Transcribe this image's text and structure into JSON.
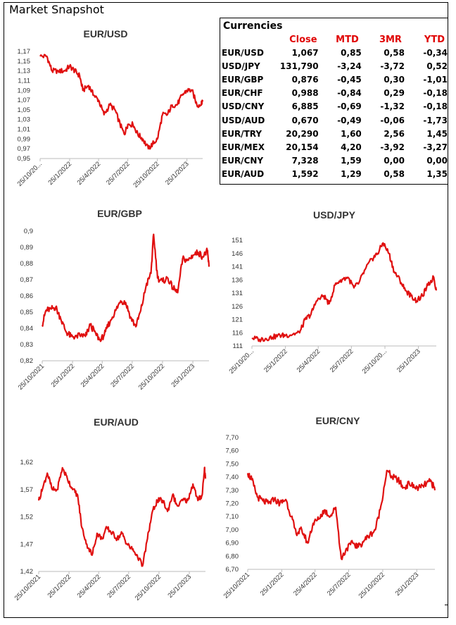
{
  "page_title": "Market Snapshot",
  "table": {
    "title": "Currencies",
    "headers": [
      "",
      "Close",
      "MTD",
      "3MR",
      "YTD"
    ],
    "rows": [
      [
        "EUR/USD",
        "1,067",
        "0,85",
        "0,58",
        "-0,34"
      ],
      [
        "USD/JPY",
        "131,790",
        "-3,24",
        "-3,72",
        "0,52"
      ],
      [
        "EUR/GBP",
        "0,876",
        "-0,45",
        "0,30",
        "-1,01"
      ],
      [
        "EUR/CHF",
        "0,988",
        "-0,84",
        "0,29",
        "-0,18"
      ],
      [
        "USD/CNY",
        "6,885",
        "-0,69",
        "-1,32",
        "-0,18"
      ],
      [
        "USD/AUD",
        "0,670",
        "-0,49",
        "-0,06",
        "-1,73"
      ],
      [
        "EUR/TRY",
        "20,290",
        "1,60",
        "2,56",
        "1,45"
      ],
      [
        "EUR/MEX",
        "20,154",
        "4,20",
        "-3,92",
        "-3,27"
      ],
      [
        "EUR/CNY",
        "7,328",
        "1,59",
        "0,00",
        "0,00"
      ],
      [
        "EUR/AUD",
        "1,592",
        "1,29",
        "0,58",
        "1,35"
      ]
    ],
    "header_color": "#e00000"
  },
  "line_color": "#e01010",
  "chart_data": [
    {
      "id": "eurusd",
      "type": "line",
      "title": "EUR/USD",
      "x": [
        "2021-10-25",
        "2021-11-15",
        "2021-12-01",
        "2021-12-20",
        "2022-01-10",
        "2022-01-25",
        "2022-02-10",
        "2022-02-25",
        "2022-03-07",
        "2022-03-25",
        "2022-04-10",
        "2022-04-25",
        "2022-05-12",
        "2022-05-30",
        "2022-06-15",
        "2022-07-01",
        "2022-07-14",
        "2022-07-25",
        "2022-08-10",
        "2022-08-25",
        "2022-09-10",
        "2022-09-27",
        "2022-10-10",
        "2022-10-25",
        "2022-11-10",
        "2022-11-25",
        "2022-12-10",
        "2022-12-25",
        "2023-01-10",
        "2023-01-25",
        "2023-02-10",
        "2023-02-25",
        "2023-03-10",
        "2023-03-15"
      ],
      "y": [
        1.16,
        1.16,
        1.13,
        1.13,
        1.13,
        1.14,
        1.13,
        1.12,
        1.09,
        1.1,
        1.08,
        1.07,
        1.04,
        1.06,
        1.05,
        1.02,
        1.0,
        1.02,
        1.02,
        1.0,
        0.99,
        0.97,
        0.98,
        0.99,
        1.04,
        1.04,
        1.06,
        1.06,
        1.08,
        1.09,
        1.09,
        1.06,
        1.06,
        1.07
      ],
      "yticks": [
        "1,17",
        "1,15",
        "1,13",
        "1,11",
        "1,09",
        "1,07",
        "1,05",
        "1,03",
        "1,01",
        "0,99",
        "0,97",
        "0,95"
      ],
      "ylim": [
        0.95,
        1.17
      ],
      "xticks": [
        "25/10/20...",
        "25/1/2022",
        "25/4/2022",
        "25/7/2022",
        "25/10/2022",
        "25/1/2023"
      ]
    },
    {
      "id": "eurgbp",
      "type": "line",
      "title": "EUR/GBP",
      "x": [
        "2021-10-25",
        "2021-11-05",
        "2021-11-20",
        "2021-12-05",
        "2021-12-20",
        "2022-01-05",
        "2022-01-20",
        "2022-02-05",
        "2022-02-20",
        "2022-03-05",
        "2022-03-20",
        "2022-04-05",
        "2022-04-20",
        "2022-05-05",
        "2022-05-20",
        "2022-06-05",
        "2022-06-20",
        "2022-07-05",
        "2022-07-20",
        "2022-08-05",
        "2022-08-20",
        "2022-09-05",
        "2022-09-20",
        "2022-09-28",
        "2022-10-10",
        "2022-10-25",
        "2022-11-10",
        "2022-11-25",
        "2022-12-10",
        "2022-12-25",
        "2023-01-10",
        "2023-01-25",
        "2023-02-10",
        "2023-02-25",
        "2023-03-10",
        "2023-03-15"
      ],
      "y": [
        0.842,
        0.851,
        0.852,
        0.853,
        0.846,
        0.838,
        0.835,
        0.835,
        0.836,
        0.835,
        0.842,
        0.837,
        0.832,
        0.838,
        0.845,
        0.851,
        0.857,
        0.856,
        0.847,
        0.841,
        0.851,
        0.866,
        0.874,
        0.898,
        0.871,
        0.869,
        0.871,
        0.865,
        0.862,
        0.883,
        0.882,
        0.885,
        0.887,
        0.884,
        0.888,
        0.878
      ],
      "yticks": [
        "0,9",
        "0,89",
        "0,88",
        "0,87",
        "0,86",
        "0,85",
        "0,84",
        "0,83",
        "0,82"
      ],
      "ylim": [
        0.82,
        0.9
      ],
      "xticks": [
        "25/10/2021",
        "25/1/2022",
        "25/4/2022",
        "25/7/2022",
        "25/10/2022",
        "25/1/2023"
      ]
    },
    {
      "id": "usdjpy",
      "type": "line",
      "title": "USD/JPY",
      "x": [
        "2021-10-25",
        "2021-11-15",
        "2021-12-01",
        "2021-12-20",
        "2022-01-10",
        "2022-01-25",
        "2022-02-15",
        "2022-03-05",
        "2022-03-20",
        "2022-04-05",
        "2022-04-20",
        "2022-05-10",
        "2022-05-25",
        "2022-06-10",
        "2022-06-25",
        "2022-07-15",
        "2022-08-01",
        "2022-08-15",
        "2022-09-01",
        "2022-09-20",
        "2022-10-05",
        "2022-10-20",
        "2022-11-05",
        "2022-11-20",
        "2022-12-05",
        "2022-12-20",
        "2023-01-05",
        "2023-01-20",
        "2023-02-05",
        "2023-02-20",
        "2023-03-08",
        "2023-03-15"
      ],
      "y": [
        114,
        113.5,
        113.8,
        114.3,
        115,
        115,
        115.5,
        116,
        121,
        123,
        128,
        130,
        127,
        134,
        136,
        137,
        133,
        135,
        140,
        144,
        146,
        150,
        146,
        139,
        136,
        132,
        130,
        128,
        130,
        134,
        137,
        132
      ],
      "yticks": [
        "151",
        "146",
        "141",
        "136",
        "131",
        "126",
        "121",
        "116",
        "111"
      ],
      "ylim": [
        111,
        151
      ],
      "xticks": [
        "25/10/20...",
        "25/1/2022",
        "25/4/2022",
        "25/7/2022",
        "25/10/20...",
        "25/1/2023"
      ]
    },
    {
      "id": "euraud",
      "type": "line",
      "title": "EUR/AUD",
      "x": [
        "2021-10-25",
        "2021-11-05",
        "2021-11-20",
        "2021-12-05",
        "2021-12-20",
        "2022-01-05",
        "2022-01-20",
        "2022-02-05",
        "2022-02-20",
        "2022-03-05",
        "2022-03-20",
        "2022-04-05",
        "2022-04-20",
        "2022-05-05",
        "2022-05-20",
        "2022-06-05",
        "2022-06-20",
        "2022-07-05",
        "2022-07-20",
        "2022-08-05",
        "2022-08-20",
        "2022-09-05",
        "2022-09-20",
        "2022-10-05",
        "2022-10-20",
        "2022-11-05",
        "2022-11-20",
        "2022-12-05",
        "2022-12-20",
        "2023-01-05",
        "2023-01-20",
        "2023-02-05",
        "2023-02-20",
        "2023-03-05",
        "2023-03-12",
        "2023-03-15"
      ],
      "y": [
        1.55,
        1.57,
        1.6,
        1.57,
        1.57,
        1.61,
        1.59,
        1.57,
        1.56,
        1.5,
        1.47,
        1.45,
        1.49,
        1.48,
        1.5,
        1.49,
        1.48,
        1.49,
        1.47,
        1.46,
        1.45,
        1.43,
        1.48,
        1.53,
        1.55,
        1.55,
        1.53,
        1.56,
        1.54,
        1.55,
        1.55,
        1.58,
        1.55,
        1.56,
        1.61,
        1.59
      ],
      "yticks": [
        "1,62",
        "1,57",
        "1,52",
        "1,47",
        "1,42"
      ],
      "ylim": [
        1.42,
        1.62
      ],
      "xticks": [
        "25/10/2021",
        "25/1/2022",
        "25/4/2022",
        "25/7/2022",
        "25/10/2022",
        "25/1/2023"
      ]
    },
    {
      "id": "eurcny",
      "type": "line",
      "title": "EUR/CNY",
      "x": [
        "2021-10-25",
        "2021-11-05",
        "2021-11-20",
        "2021-12-05",
        "2021-12-20",
        "2022-01-05",
        "2022-01-20",
        "2022-02-05",
        "2022-02-20",
        "2022-03-05",
        "2022-03-20",
        "2022-04-05",
        "2022-04-20",
        "2022-05-05",
        "2022-05-20",
        "2022-06-05",
        "2022-06-20",
        "2022-07-05",
        "2022-07-20",
        "2022-08-05",
        "2022-08-20",
        "2022-09-05",
        "2022-09-20",
        "2022-10-05",
        "2022-10-20",
        "2022-11-05",
        "2022-11-20",
        "2022-12-05",
        "2022-12-20",
        "2023-01-05",
        "2023-01-20",
        "2023-02-05",
        "2023-02-20",
        "2023-03-05",
        "2023-03-15"
      ],
      "y": [
        7.43,
        7.38,
        7.25,
        7.22,
        7.2,
        7.23,
        7.2,
        7.23,
        7.1,
        6.97,
        7.0,
        6.9,
        7.05,
        7.08,
        7.15,
        7.1,
        7.17,
        6.78,
        6.86,
        6.9,
        6.87,
        6.92,
        6.96,
        7.0,
        7.18,
        7.45,
        7.4,
        7.38,
        7.32,
        7.35,
        7.32,
        7.32,
        7.35,
        7.37,
        7.3
      ],
      "yticks": [
        "7,70",
        "7,60",
        "7,50",
        "7,40",
        "7,30",
        "7,20",
        "7,10",
        "7,00",
        "6,90",
        "6,80",
        "6,70"
      ],
      "ylim": [
        6.7,
        7.7
      ],
      "xticks": [
        "25/10/2021",
        "25/1/2022",
        "25/4/2022",
        "25/7/2022",
        "25/10/2022",
        "25/1/2023"
      ]
    }
  ]
}
